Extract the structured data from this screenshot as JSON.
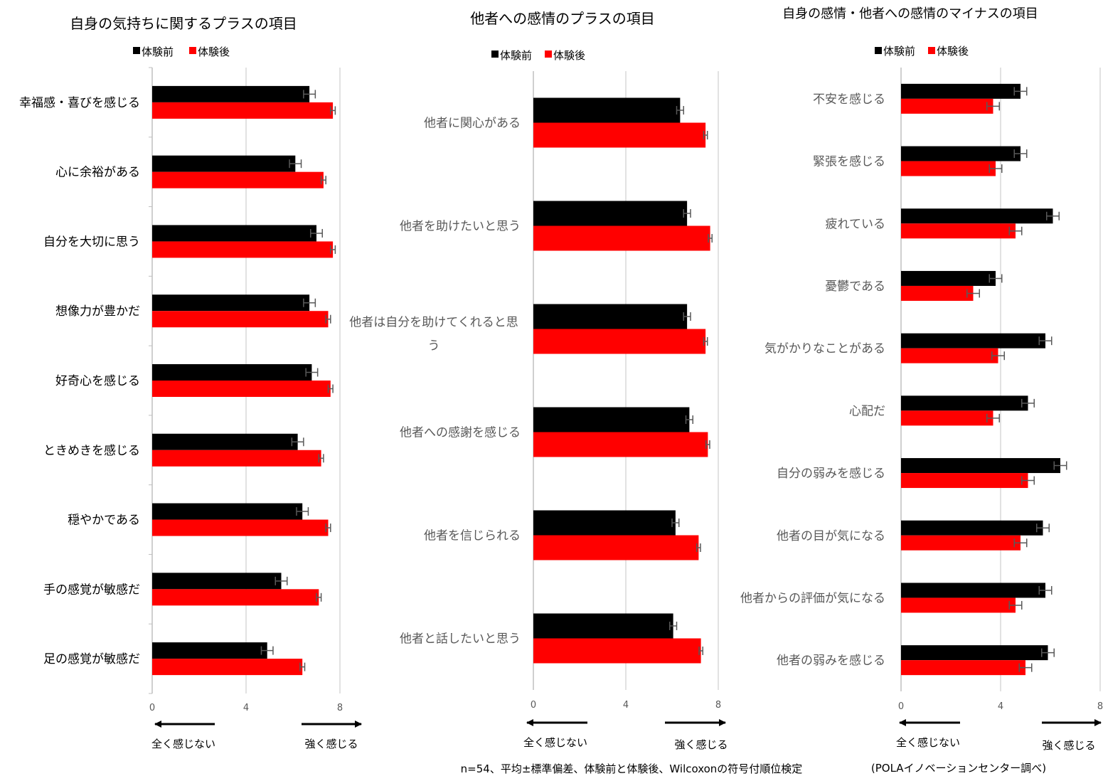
{
  "colors": {
    "before": "#000000",
    "after": "#ff0000",
    "grid": "#d9d9d9",
    "error": "#595959"
  },
  "legend": {
    "before": "体験前",
    "after": "体験後"
  },
  "directions": {
    "left": "全く感じない",
    "right": "強く感じる"
  },
  "footnote": {
    "method": "n=54、平均±標準偏差、体験前と体験後、Wilcoxonの符号付順位検定",
    "source": "(POLAイノベーションセンター調べ)"
  },
  "chart_data": [
    {
      "type": "bar",
      "orientation": "horizontal",
      "title": "自身の気持ちに関するプラスの項目",
      "categories": [
        "幸福感・喜びを感じる",
        "心に余裕がある",
        "自分を大切に思う",
        "想像力が豊かだ",
        "好奇心を感じる",
        "ときめきを感じる",
        "穏やかである",
        "手の感覚が敏感だ",
        "足の感覚が敏感だ"
      ],
      "series": [
        {
          "name": "体験前",
          "values": [
            6.7,
            6.1,
            7.0,
            6.7,
            6.8,
            6.2,
            6.4,
            5.5,
            4.9
          ],
          "errors": [
            0.25,
            0.25,
            0.25,
            0.25,
            0.25,
            0.25,
            0.25,
            0.25,
            0.25
          ]
        },
        {
          "name": "体験後",
          "values": [
            7.7,
            7.3,
            7.7,
            7.5,
            7.6,
            7.2,
            7.5,
            7.1,
            6.4
          ],
          "errors": [
            0.1,
            0.1,
            0.1,
            0.1,
            0.1,
            0.1,
            0.1,
            0.1,
            0.1
          ]
        }
      ],
      "xlim": [
        0,
        8
      ],
      "ticks": [
        0,
        4,
        8
      ],
      "grid": true,
      "legend_position": "top-left"
    },
    {
      "type": "bar",
      "orientation": "horizontal",
      "title": "他者への感情のプラスの項目",
      "categories": [
        "他者に関心がある",
        "他者を助けたいと思う",
        "他者は自分を助けてくれると思う",
        "他者への感謝を感じる",
        "他者を信じられる",
        "他者と話したいと思う"
      ],
      "series": [
        {
          "name": "体験前",
          "values": [
            6.35,
            6.65,
            6.65,
            6.75,
            6.15,
            6.05
          ],
          "errors": [
            0.15,
            0.15,
            0.15,
            0.15,
            0.15,
            0.15
          ]
        },
        {
          "name": "体験後",
          "values": [
            7.45,
            7.65,
            7.45,
            7.55,
            7.15,
            7.25
          ],
          "errors": [
            0.08,
            0.08,
            0.08,
            0.08,
            0.08,
            0.08
          ]
        }
      ],
      "xlim": [
        0,
        8
      ],
      "ticks": [
        0,
        4,
        8
      ],
      "grid": true,
      "legend_position": "top-left"
    },
    {
      "type": "bar",
      "orientation": "horizontal",
      "title": "自身の感情・他者への感情のマイナスの項目",
      "categories": [
        "不安を感じる",
        "緊張を感じる",
        "疲れている",
        "憂鬱である",
        "気がかりなことがある",
        "心配だ",
        "自分の弱みを感じる",
        "他者の目が気になる",
        "他者からの評価が気になる",
        "他者の弱みを感じる"
      ],
      "series": [
        {
          "name": "体験前",
          "values": [
            4.8,
            4.8,
            6.1,
            3.8,
            5.8,
            5.1,
            6.4,
            5.7,
            5.8,
            5.9
          ],
          "errors": [
            0.25,
            0.25,
            0.25,
            0.25,
            0.25,
            0.25,
            0.25,
            0.25,
            0.25,
            0.25
          ]
        },
        {
          "name": "体験後",
          "values": [
            3.7,
            3.8,
            4.6,
            2.9,
            3.9,
            3.7,
            5.1,
            4.8,
            4.6,
            5.0
          ],
          "errors": [
            0.25,
            0.25,
            0.25,
            0.25,
            0.25,
            0.25,
            0.25,
            0.25,
            0.25,
            0.25
          ]
        }
      ],
      "xlim": [
        0,
        8
      ],
      "ticks": [
        0,
        4,
        8
      ],
      "grid": true,
      "legend_position": "top-left"
    }
  ]
}
